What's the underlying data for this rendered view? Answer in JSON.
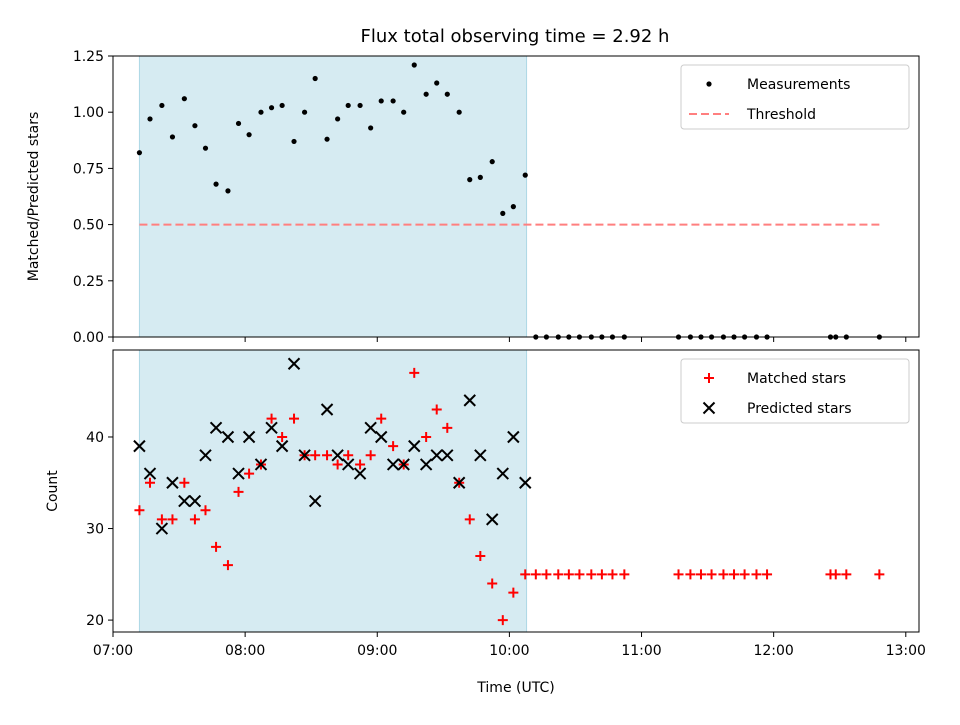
{
  "title": "Flux total observing time = 2.92 h",
  "colors": {
    "shade": "#add8e6",
    "measurement": "#000000",
    "threshold": "#ff7f7f",
    "matched": "#ff0000",
    "predicted": "#000000"
  },
  "chart_data": [
    {
      "type": "scatter",
      "panel": "top",
      "ylabel": "Matched/Predicted stars",
      "xlim": [
        7.0,
        13.1
      ],
      "ylim": [
        0,
        1.25
      ],
      "yticks": [
        0,
        0.25,
        0.5,
        0.75,
        1.0,
        1.25
      ],
      "ytick_labels": [
        "0.00",
        "0.25",
        "0.50",
        "0.75",
        "1.00",
        "1.25"
      ],
      "shaded_region": [
        7.2,
        10.13
      ],
      "legend": {
        "position": "top-right",
        "entries": [
          "Measurements",
          "Threshold"
        ]
      },
      "threshold": {
        "name": "Threshold",
        "value": 0.5,
        "x_range": [
          7.2,
          12.8
        ]
      },
      "series": [
        {
          "name": "Measurements",
          "x": [
            7.2,
            7.28,
            7.37,
            7.45,
            7.54,
            7.62,
            7.7,
            7.78,
            7.87,
            7.95,
            8.03,
            8.12,
            8.2,
            8.28,
            8.37,
            8.45,
            8.53,
            8.62,
            8.7,
            8.78,
            8.87,
            8.95,
            9.03,
            9.12,
            9.2,
            9.28,
            9.37,
            9.45,
            9.53,
            9.62,
            9.7,
            9.78,
            9.87,
            9.95,
            10.03,
            10.12,
            10.2,
            10.28,
            10.37,
            10.45,
            10.53,
            10.62,
            10.7,
            10.78,
            10.87,
            11.28,
            11.37,
            11.45,
            11.53,
            11.62,
            11.7,
            11.78,
            11.87,
            11.95,
            12.43,
            12.47,
            12.55,
            12.8
          ],
          "y": [
            0.82,
            0.97,
            1.03,
            0.89,
            1.06,
            0.94,
            0.84,
            0.68,
            0.65,
            0.95,
            0.9,
            1.0,
            1.02,
            1.03,
            0.87,
            1.0,
            1.15,
            0.88,
            0.97,
            1.03,
            1.03,
            0.93,
            1.05,
            1.05,
            1.0,
            1.21,
            1.08,
            1.13,
            1.08,
            1.0,
            0.7,
            0.71,
            0.78,
            0.55,
            0.58,
            0.72,
            0,
            0,
            0,
            0,
            0,
            0,
            0,
            0,
            0,
            0,
            0,
            0,
            0,
            0,
            0,
            0,
            0,
            0,
            0,
            0,
            0,
            0
          ]
        }
      ]
    },
    {
      "type": "scatter",
      "panel": "bottom",
      "xlabel": "Time (UTC)",
      "ylabel": "Count",
      "xlim": [
        7.0,
        13.1
      ],
      "ylim": [
        18.7,
        49.5
      ],
      "yticks": [
        20,
        30,
        40
      ],
      "ytick_labels": [
        "20",
        "30",
        "40"
      ],
      "xticks": [
        7,
        8,
        9,
        10,
        11,
        12,
        13
      ],
      "xtick_labels": [
        "07:00",
        "08:00",
        "09:00",
        "10:00",
        "11:00",
        "12:00",
        "13:00"
      ],
      "shaded_region": [
        7.2,
        10.13
      ],
      "legend": {
        "position": "top-right",
        "entries": [
          "Matched stars",
          "Predicted stars"
        ]
      },
      "series": [
        {
          "name": "Matched stars",
          "marker": "plus",
          "x": [
            7.2,
            7.28,
            7.37,
            7.45,
            7.54,
            7.62,
            7.7,
            7.78,
            7.87,
            7.95,
            8.03,
            8.12,
            8.2,
            8.28,
            8.37,
            8.45,
            8.53,
            8.62,
            8.7,
            8.78,
            8.87,
            8.95,
            9.03,
            9.12,
            9.2,
            9.28,
            9.37,
            9.45,
            9.53,
            9.62,
            9.7,
            9.78,
            9.87,
            9.95,
            10.03,
            10.12,
            10.2,
            10.28,
            10.37,
            10.45,
            10.53,
            10.62,
            10.7,
            10.78,
            10.87,
            11.28,
            11.37,
            11.45,
            11.53,
            11.62,
            11.7,
            11.78,
            11.87,
            11.95,
            12.43,
            12.47,
            12.55,
            12.8
          ],
          "y": [
            32,
            35,
            31,
            31,
            35,
            31,
            32,
            28,
            26,
            34,
            36,
            37,
            42,
            40,
            42,
            38,
            38,
            38,
            37,
            38,
            37,
            38,
            42,
            39,
            37,
            47,
            40,
            43,
            41,
            35,
            31,
            27,
            24,
            20,
            23,
            25,
            25,
            25,
            25,
            25,
            25,
            25,
            25,
            25,
            25,
            25,
            25,
            25,
            25,
            25,
            25,
            25,
            25,
            25,
            25,
            25,
            25,
            25
          ]
        },
        {
          "name": "Predicted stars",
          "marker": "x",
          "x": [
            7.2,
            7.28,
            7.37,
            7.45,
            7.54,
            7.62,
            7.7,
            7.78,
            7.87,
            7.95,
            8.03,
            8.12,
            8.2,
            8.28,
            8.37,
            8.45,
            8.53,
            8.62,
            8.7,
            8.78,
            8.87,
            8.95,
            9.03,
            9.12,
            9.2,
            9.28,
            9.37,
            9.45,
            9.53,
            9.62,
            9.7,
            9.78,
            9.87,
            9.95,
            10.03,
            10.12
          ],
          "y": [
            39,
            36,
            30,
            35,
            33,
            33,
            38,
            41,
            40,
            36,
            40,
            37,
            41,
            39,
            48,
            38,
            33,
            43,
            38,
            37,
            36,
            41,
            40,
            37,
            37,
            39,
            37,
            38,
            38,
            35,
            44,
            38,
            31,
            36,
            40,
            35
          ]
        }
      ]
    }
  ]
}
